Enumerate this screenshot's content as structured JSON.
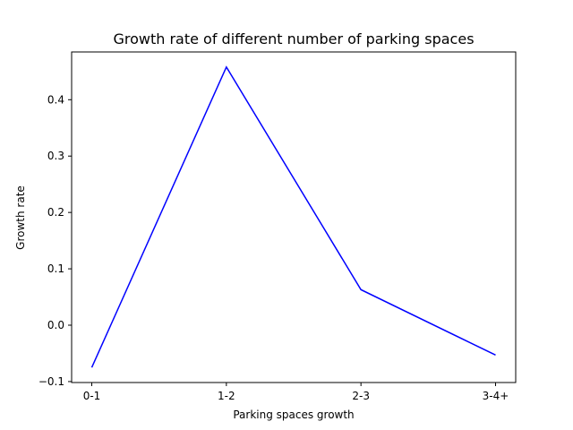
{
  "chart_data": {
    "type": "line",
    "title": "Growth rate of different number of parking spaces",
    "xlabel": "Parking spaces growth",
    "ylabel": "Growth rate",
    "categories": [
      "0-1",
      "1-2",
      "2-3",
      "3-4+"
    ],
    "series": [
      {
        "values": [
          -0.075,
          0.458,
          0.063,
          -0.053
        ],
        "color": "#0000ff"
      }
    ],
    "ylim": [
      -0.1,
      0.5
    ],
    "yticks": [
      -0.1,
      0.0,
      0.1,
      0.2,
      0.3,
      0.4
    ],
    "ytick_labels": [
      "−0.1",
      "0.0",
      "0.1",
      "0.2",
      "0.3",
      "0.4"
    ],
    "grid": false,
    "legend": "none"
  }
}
